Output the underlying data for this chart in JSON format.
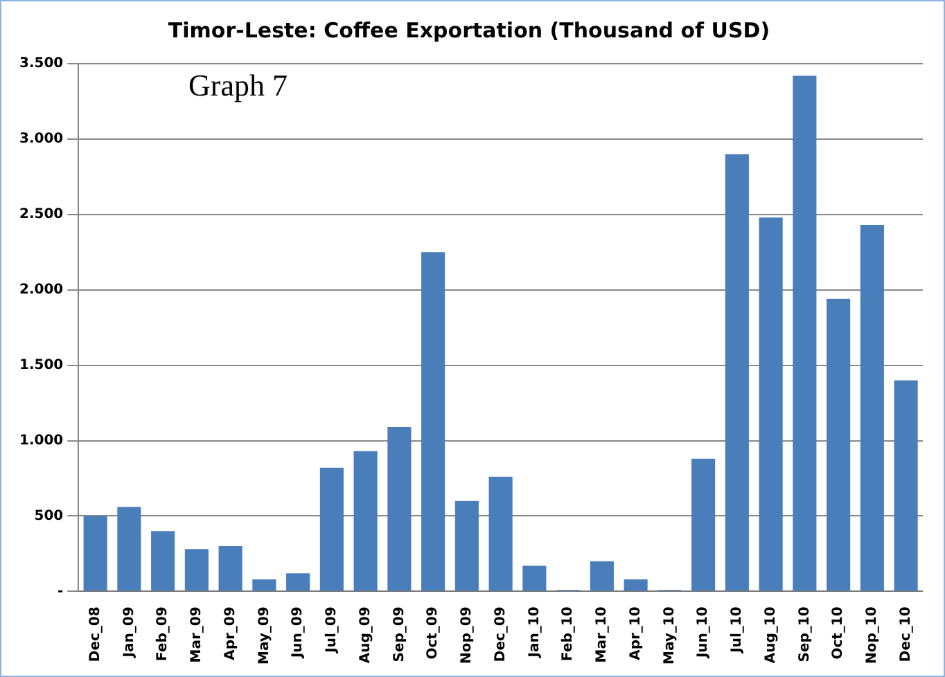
{
  "chart_data": {
    "type": "bar",
    "title": "Timor-Leste: Coffee Exportation (Thousand of USD)",
    "categories": [
      "Dec_08",
      "Jan_09",
      "Feb_09",
      "Mar_09",
      "Apr_09",
      "May_09",
      "Jun_09",
      "Jul_09",
      "Aug_09",
      "Sep_09",
      "Oct_09",
      "Nop_09",
      "Dec_09",
      "Jan_10",
      "Feb_10",
      "Mar_10",
      "Apr_10",
      "May_10",
      "Jun_10",
      "Jul_10",
      "Aug_10",
      "Sep_10",
      "Oct_10",
      "Nop_10",
      "Dec_10"
    ],
    "values": [
      500,
      560,
      400,
      280,
      300,
      80,
      120,
      820,
      930,
      1090,
      2250,
      600,
      760,
      170,
      10,
      200,
      80,
      10,
      880,
      2900,
      2480,
      3420,
      1940,
      2430,
      1400
    ],
    "color": "#4a7ebb",
    "ylim": [
      0,
      3500
    ],
    "yticks": [
      {
        "value": 0,
        "label": "-"
      },
      {
        "value": 500,
        "label": "500"
      },
      {
        "value": 1000,
        "label": "1.000"
      },
      {
        "value": 1500,
        "label": "1.500"
      },
      {
        "value": 2000,
        "label": "2.000"
      },
      {
        "value": 2500,
        "label": "2.500"
      },
      {
        "value": 3000,
        "label": "3.000"
      },
      {
        "value": 3500,
        "label": "3.500"
      }
    ],
    "grid": "y",
    "annotations": [
      "Graph 7"
    ]
  }
}
